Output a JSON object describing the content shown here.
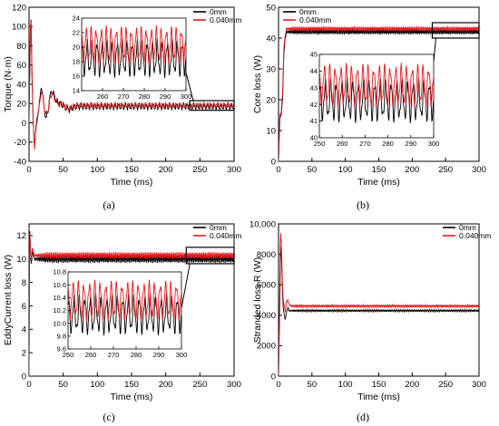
{
  "colors": {
    "series_0mm": "#000000",
    "series_0040mm": "#e8191d",
    "frame": "#000000"
  },
  "chart_data": [
    {
      "type": "line",
      "panel_label": "(a)",
      "xlabel": "Time (ms)",
      "ylabel": "Torque (N·m)",
      "xlim": [
        0,
        300
      ],
      "ylim": [
        -40,
        120
      ],
      "xticks": [
        "0",
        "50",
        "100",
        "150",
        "200",
        "250",
        "300"
      ],
      "yticks": [
        "-40",
        "-20",
        "0",
        "20",
        "40",
        "60",
        "80",
        "100",
        "120"
      ],
      "legend": {
        "position": "top-right",
        "entries": [
          "0mm",
          "0.040mm"
        ]
      },
      "series": [
        {
          "name": "0mm",
          "x": [
            0,
            2,
            3,
            4,
            6,
            8,
            10,
            13,
            16,
            18,
            20,
            22,
            25,
            28,
            30,
            33,
            36,
            40,
            45,
            50,
            55,
            60,
            65,
            70,
            80,
            100,
            150,
            200,
            250,
            300
          ],
          "y": [
            0,
            95,
            110,
            60,
            0,
            -25,
            -5,
            10,
            25,
            38,
            30,
            15,
            5,
            12,
            25,
            33,
            30,
            22,
            20,
            18,
            15,
            14,
            16,
            17,
            17,
            17,
            17,
            17,
            17,
            17
          ],
          "ripple_amplitude": 3.5,
          "ripple_period": 5
        },
        {
          "name": "0.040mm",
          "x": [
            0,
            2,
            3,
            4,
            6,
            8,
            10,
            13,
            16,
            18,
            20,
            22,
            25,
            28,
            30,
            33,
            36,
            40,
            45,
            50,
            55,
            60,
            65,
            70,
            80,
            100,
            150,
            200,
            250,
            300
          ],
          "y": [
            0,
            100,
            107,
            65,
            5,
            -27,
            -8,
            8,
            22,
            33,
            28,
            17,
            8,
            14,
            24,
            30,
            28,
            22,
            20,
            19,
            16,
            15,
            17,
            18,
            18,
            18,
            18,
            18,
            18,
            18
          ],
          "ripple_amplitude": 3,
          "ripple_period": 5,
          "ripple_phase": 1.4
        }
      ],
      "inset": {
        "xlim": [
          250,
          300
        ],
        "ylim": [
          14,
          24
        ],
        "xticks": [
          "260",
          "270",
          "280",
          "290",
          "300"
        ],
        "yticks": [
          "14",
          "16",
          "18",
          "20",
          "22",
          "24"
        ],
        "source_xlim": [
          235,
          300
        ],
        "source_ylim": [
          13,
          23
        ]
      }
    },
    {
      "type": "line",
      "panel_label": "(b)",
      "xlabel": "Time (ms)",
      "ylabel": "Core loss (W)",
      "xlim": [
        0,
        300
      ],
      "ylim": [
        0,
        50
      ],
      "xticks": [
        "0",
        "50",
        "100",
        "150",
        "200",
        "250",
        "300"
      ],
      "yticks": [
        "0",
        "10",
        "20",
        "30",
        "40",
        "50"
      ],
      "legend": {
        "position": "top-left",
        "entries": [
          "0mm",
          "0.040mm"
        ]
      },
      "series": [
        {
          "name": "0mm",
          "x": [
            0,
            2,
            4,
            6,
            8,
            10,
            12,
            15,
            20,
            30,
            50,
            100,
            200,
            300
          ],
          "y": [
            0,
            14,
            15,
            20,
            35,
            40,
            42,
            42,
            42,
            42,
            42,
            42,
            42,
            42
          ],
          "ripple_amplitude": 0.8,
          "ripple_period": 2.3
        },
        {
          "name": "0.040mm",
          "x": [
            0,
            2,
            4,
            6,
            8,
            10,
            12,
            15,
            20,
            30,
            50,
            100,
            200,
            300
          ],
          "y": [
            0,
            15,
            16,
            22,
            37,
            41,
            43,
            43,
            43,
            43,
            43,
            43,
            43,
            43
          ],
          "ripple_amplitude": 0.7,
          "ripple_period": 2.3,
          "ripple_phase": 0.9
        }
      ],
      "inset": {
        "xlim": [
          250,
          300
        ],
        "ylim": [
          40,
          45
        ],
        "xticks": [
          "250",
          "260",
          "270",
          "280",
          "290",
          "300"
        ],
        "yticks": [
          "40",
          "41",
          "42",
          "43",
          "44",
          "45"
        ],
        "source_xlim": [
          230,
          300
        ],
        "source_ylim": [
          40,
          45
        ]
      }
    },
    {
      "type": "line",
      "panel_label": "(c)",
      "xlabel": "Time (ms)",
      "ylabel": "EddyCurrent loss (W)",
      "xlim": [
        0,
        300
      ],
      "ylim": [
        0,
        13
      ],
      "xticks": [
        "0",
        "50",
        "100",
        "150",
        "200",
        "250",
        "300"
      ],
      "yticks": [
        "0",
        "2",
        "4",
        "6",
        "8",
        "10",
        "12"
      ],
      "legend": {
        "position": "top-right",
        "entries": [
          "0mm",
          "0.040mm"
        ]
      },
      "series": [
        {
          "name": "0mm",
          "x": [
            0,
            1,
            2,
            3,
            4,
            5,
            6,
            8,
            10,
            15,
            20,
            50,
            100,
            300
          ],
          "y": [
            0,
            12.7,
            11,
            9.5,
            10,
            10.8,
            10.4,
            10,
            10,
            10,
            10,
            10,
            10,
            10
          ],
          "ripple_amplitude": 0.35,
          "ripple_period": 2.3
        },
        {
          "name": "0.040mm",
          "x": [
            0,
            1,
            2,
            3,
            4,
            5,
            6,
            8,
            10,
            15,
            20,
            50,
            100,
            300
          ],
          "y": [
            0,
            12.5,
            11.2,
            9.8,
            10.2,
            11,
            10.6,
            10.3,
            10.3,
            10.3,
            10.3,
            10.3,
            10.3,
            10.3
          ],
          "ripple_amplitude": 0.3,
          "ripple_period": 2.3,
          "ripple_phase": 1.0
        }
      ],
      "inset": {
        "xlim": [
          250,
          300
        ],
        "ylim": [
          9.6,
          10.8
        ],
        "xticks": [
          "250",
          "260",
          "270",
          "280",
          "290",
          "300"
        ],
        "yticks": [
          "9.6",
          "9.8",
          "10.0",
          "10.2",
          "10.4",
          "10.6",
          "10.8"
        ],
        "source_xlim": [
          230,
          300
        ],
        "source_ylim": [
          9.6,
          11
        ]
      }
    },
    {
      "type": "line",
      "panel_label": "(d)",
      "xlabel": "Time (ms)",
      "ylabel": "Stranded loss R (W)",
      "xlim": [
        0,
        300
      ],
      "ylim": [
        0,
        10000
      ],
      "xticks": [
        "0",
        "50",
        "100",
        "150",
        "200",
        "250",
        "300"
      ],
      "yticks": [
        "0",
        "2000",
        "4000",
        "6000",
        "8000",
        "10,000"
      ],
      "legend": {
        "position": "top-right",
        "entries": [
          "0mm",
          "0.040mm"
        ]
      },
      "series": [
        {
          "name": "0mm",
          "x": [
            0,
            2,
            3,
            4,
            5,
            6,
            7,
            8,
            10,
            12,
            14,
            16,
            20,
            30,
            50,
            100,
            300
          ],
          "y": [
            0,
            5000,
            8000,
            8500,
            7000,
            5500,
            4500,
            4200,
            3700,
            4200,
            4500,
            4300,
            4300,
            4300,
            4300,
            4300,
            4300
          ],
          "ripple_amplitude": 70,
          "ripple_period": 2.3
        },
        {
          "name": "0.040mm",
          "x": [
            0,
            2,
            3,
            4,
            5,
            6,
            7,
            8,
            10,
            12,
            14,
            16,
            20,
            30,
            50,
            100,
            300
          ],
          "y": [
            0,
            6000,
            9500,
            9000,
            7500,
            6000,
            5000,
            4800,
            4200,
            4900,
            5000,
            4700,
            4600,
            4600,
            4600,
            4600,
            4600
          ],
          "ripple_amplitude": 90,
          "ripple_period": 2.3,
          "ripple_phase": 1.2
        }
      ]
    }
  ]
}
